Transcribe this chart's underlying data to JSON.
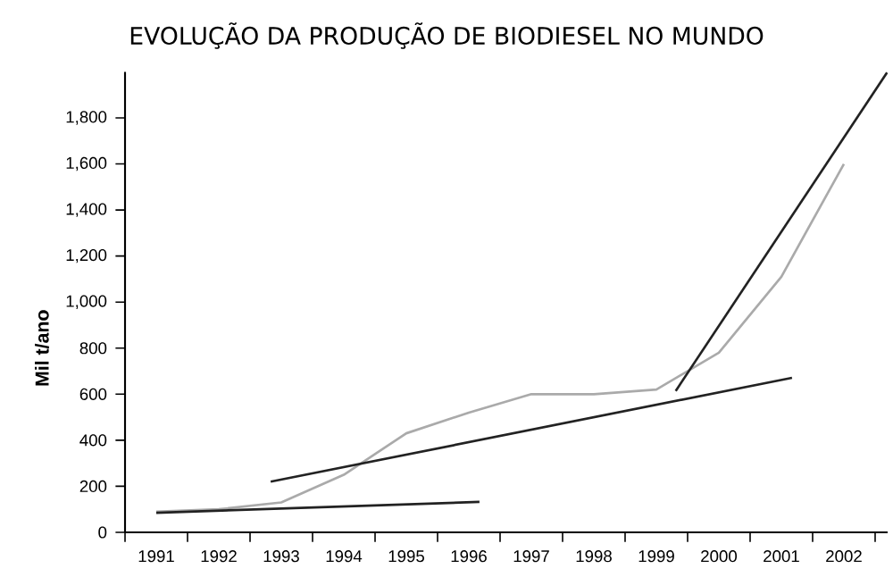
{
  "chart_data": {
    "type": "line",
    "title": "EVOLUÇÃO DA PRODUÇÃO DE BIODIESEL NO MUNDO",
    "ylabel": "Mil t/ano",
    "x": [
      1991,
      1992,
      1993,
      1994,
      1995,
      1996,
      1997,
      1998,
      1999,
      2000,
      2001,
      2002
    ],
    "series": [
      {
        "color": "#aaaaaa",
        "values": [
          90,
          100,
          130,
          250,
          430,
          520,
          600,
          600,
          620,
          780,
          1110,
          1600
        ]
      },
      {
        "color": "#222222",
        "x": [
          1991.0,
          1996.17
        ],
        "values": [
          85,
          132
        ]
      },
      {
        "color": "#222222",
        "x": [
          1992.83,
          2001.17
        ],
        "values": [
          220,
          671
        ]
      },
      {
        "color": "#222222",
        "x": [
          1999.31,
          2002.69
        ],
        "values": [
          614,
          1997
        ]
      }
    ],
    "xlim": [
      1990.5,
      2002.7
    ],
    "ylim": [
      0,
      2000
    ],
    "xticks": [
      {
        "value": 1991,
        "label": "1991"
      },
      {
        "value": 1992,
        "label": "1992"
      },
      {
        "value": 1993,
        "label": "1993"
      },
      {
        "value": 1994,
        "label": "1994"
      },
      {
        "value": 1995,
        "label": "1995"
      },
      {
        "value": 1996,
        "label": "1996"
      },
      {
        "value": 1997,
        "label": "1997"
      },
      {
        "value": 1998,
        "label": "1998"
      },
      {
        "value": 1999,
        "label": "1999"
      },
      {
        "value": 2000,
        "label": "2000"
      },
      {
        "value": 2001,
        "label": "2001"
      },
      {
        "value": 2002,
        "label": "2002"
      },
      {
        "value": 1990.5,
        "label": null
      },
      {
        "value": 1991.5,
        "label": null
      },
      {
        "value": 1992.5,
        "label": null
      },
      {
        "value": 1993.5,
        "label": null
      },
      {
        "value": 1994.5,
        "label": null
      },
      {
        "value": 1995.5,
        "label": null
      },
      {
        "value": 1996.5,
        "label": null
      },
      {
        "value": 1997.5,
        "label": null
      },
      {
        "value": 1998.5,
        "label": null
      },
      {
        "value": 1999.5,
        "label": null
      },
      {
        "value": 2000.5,
        "label": null
      },
      {
        "value": 2001.5,
        "label": null
      },
      {
        "value": 2002.5,
        "label": null
      }
    ],
    "yticks": [
      0,
      200,
      400,
      600,
      800,
      {
        "value": 1000,
        "label": "1,000"
      },
      {
        "value": 1200,
        "label": "1,200"
      },
      {
        "value": 1400,
        "label": "1,400"
      },
      {
        "value": 1600,
        "label": "1,600"
      },
      {
        "value": 1800,
        "label": "1,800"
      }
    ],
    "marker": "none",
    "line_style": "solid"
  }
}
